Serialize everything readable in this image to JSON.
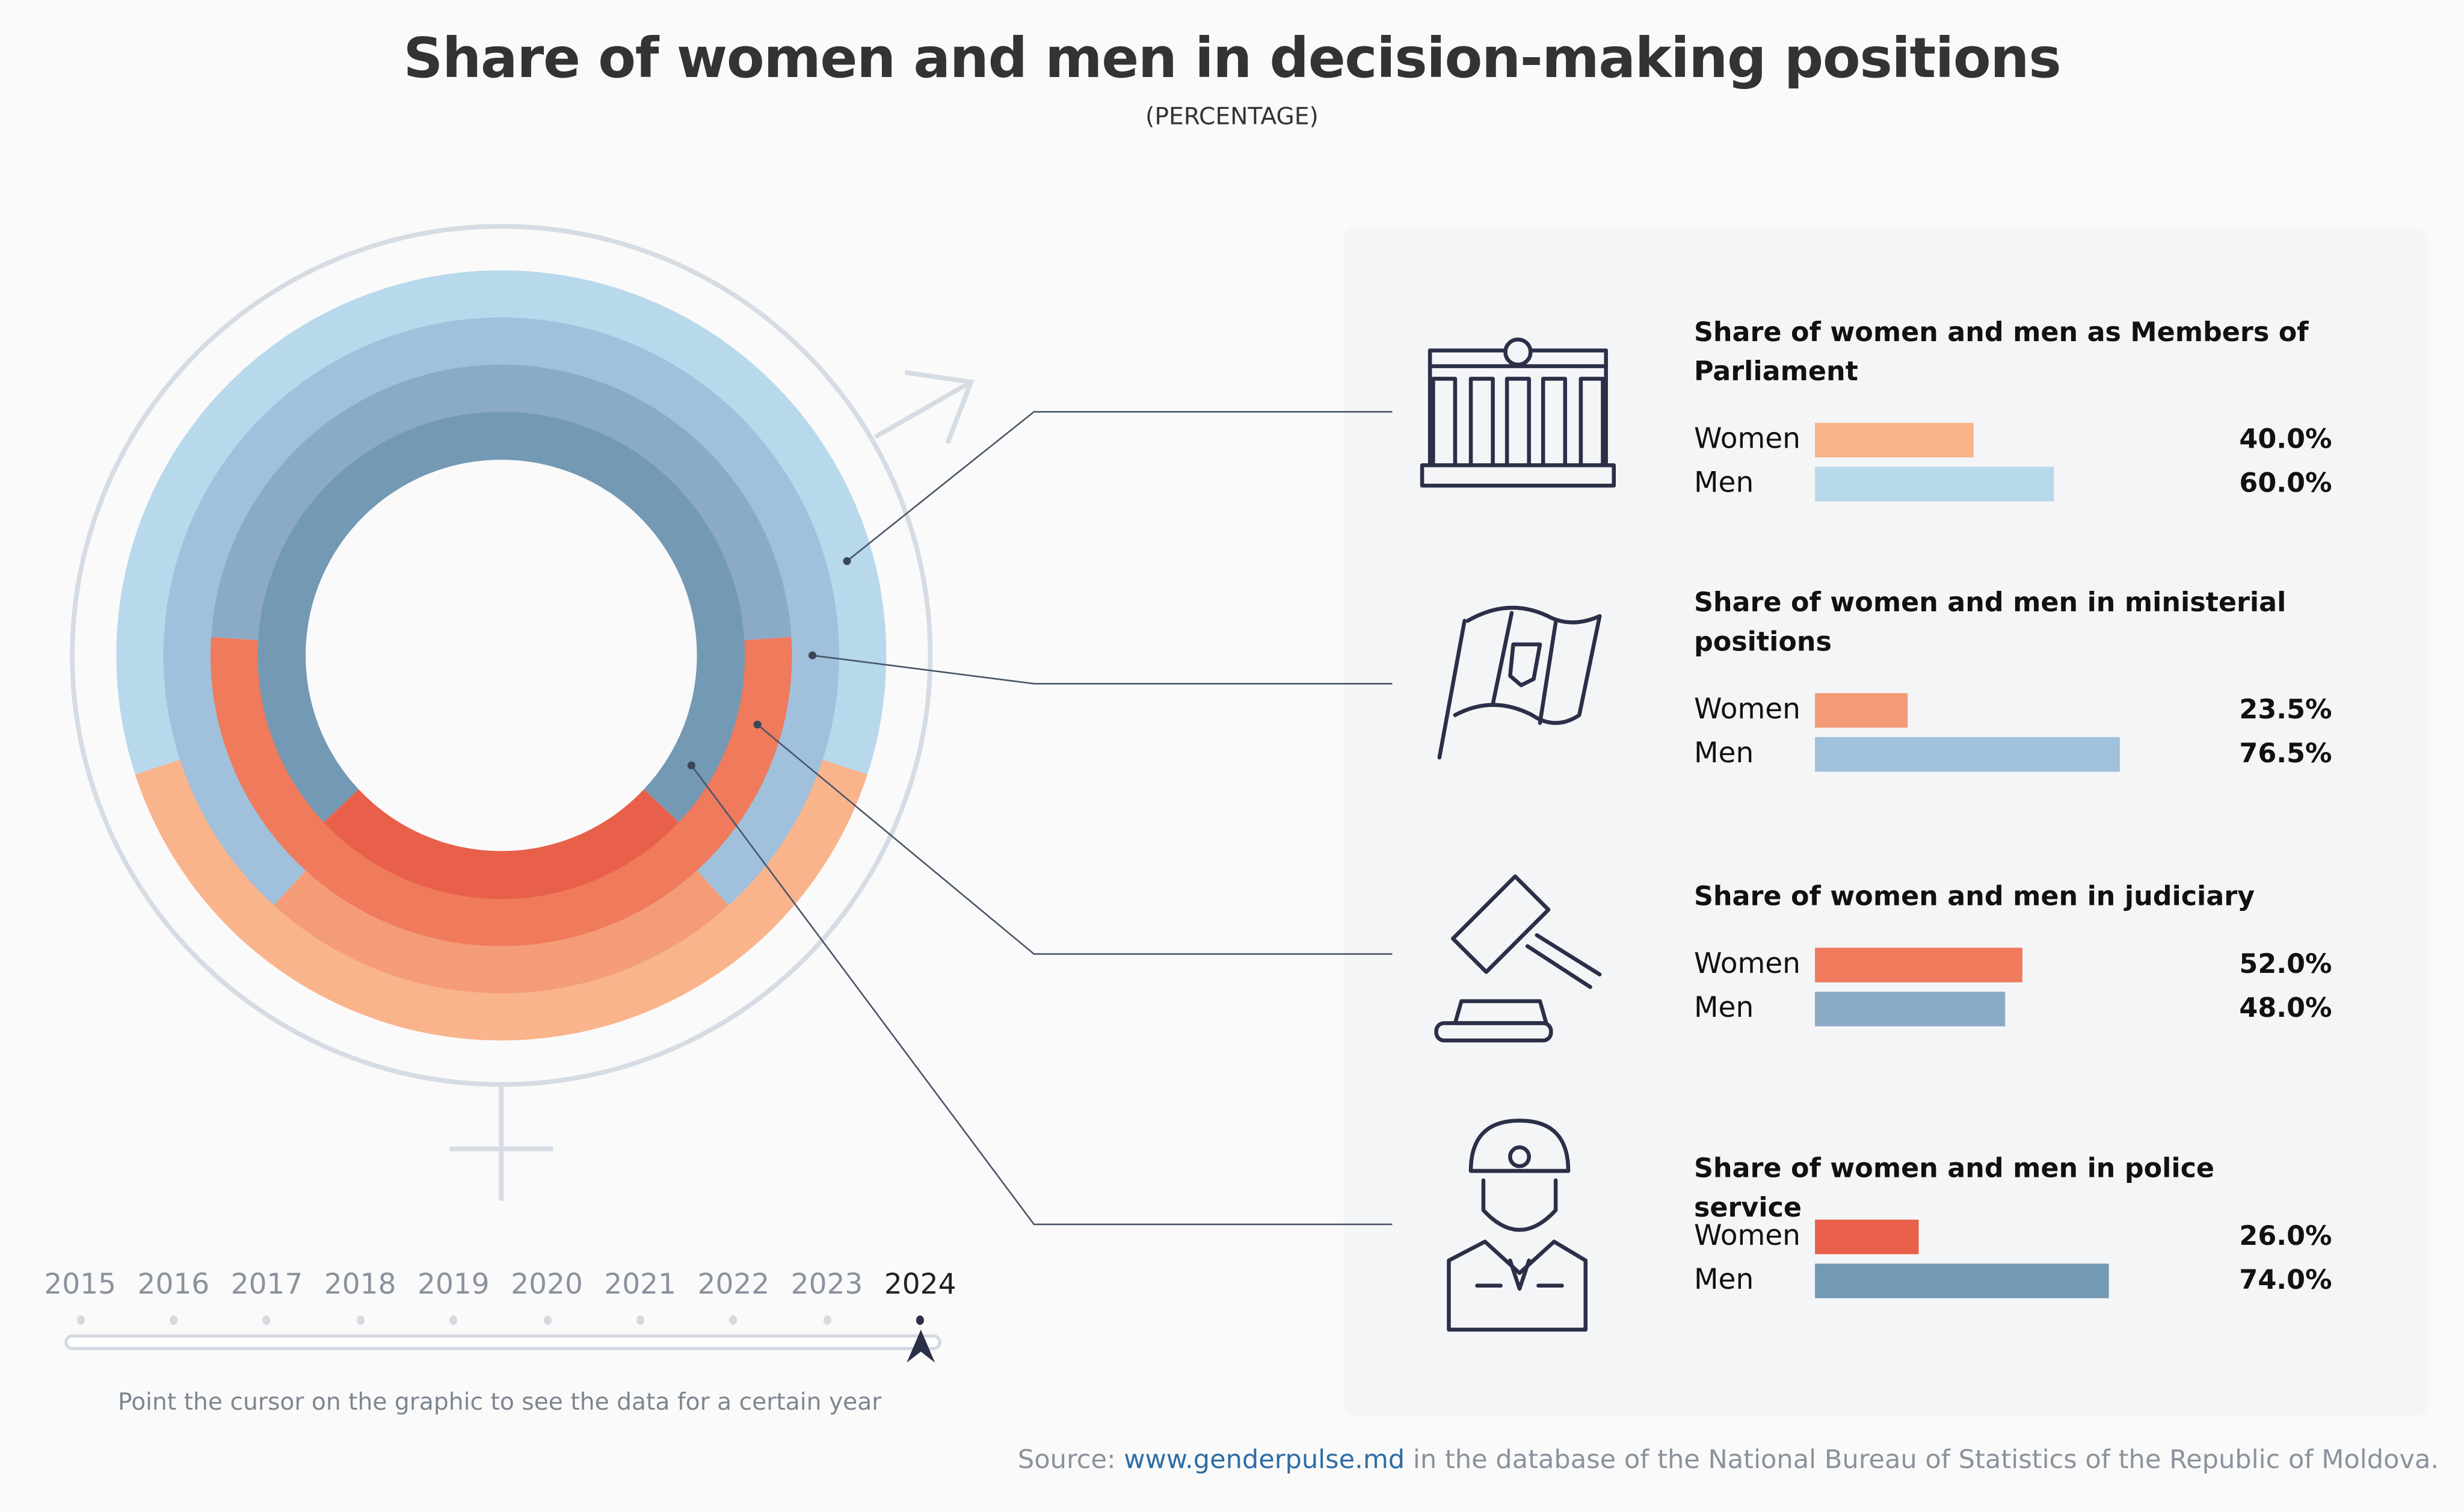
{
  "title": "Share of women and men in decision-making positions",
  "subtitle": "(PERCENTAGE)",
  "chart_data": {
    "type": "radial-bar",
    "year": "2024",
    "categories": [
      {
        "title": "Share of women and men as Members of Parliament",
        "icon": "parliament-building-icon",
        "women": 40.0,
        "men": 60.0,
        "women_label": "40.0%",
        "men_label": "60.0%",
        "women_color": "#f9b48c",
        "men_color": "#b8d8ec"
      },
      {
        "title": "Share of women and men in ministerial positions",
        "icon": "moldova-flag-icon",
        "women": 23.5,
        "men": 76.5,
        "women_label": "23.5%",
        "men_label": "76.5%",
        "women_color": "#f49c78",
        "men_color": "#a0c0dc"
      },
      {
        "title": "Share of women and men in judiciary",
        "icon": "gavel-icon",
        "women": 52.0,
        "men": 48.0,
        "women_label": "52.0%",
        "men_label": "48.0%",
        "women_color": "#ef7a5c",
        "men_color": "#8aaac6"
      },
      {
        "title": "Share of women and men in police service",
        "icon": "police-officer-icon",
        "women": 26.0,
        "men": 74.0,
        "women_label": "26.0%",
        "men_label": "74.0%",
        "women_color": "#e8604a",
        "men_color": "#7499b4"
      }
    ],
    "series_labels": {
      "women": "Women",
      "men": "Men"
    }
  },
  "timeline": {
    "years": [
      "2015",
      "2016",
      "2017",
      "2018",
      "2019",
      "2020",
      "2021",
      "2022",
      "2023",
      "2024"
    ],
    "selected": "2024",
    "hint": "Point the cursor on the graphic to see the data for a certain year"
  },
  "source": {
    "prefix": "Source: ",
    "link": "www.genderpulse.md",
    "suffix": " in the database of the National Bureau of Statistics of the Republic of Moldova."
  }
}
